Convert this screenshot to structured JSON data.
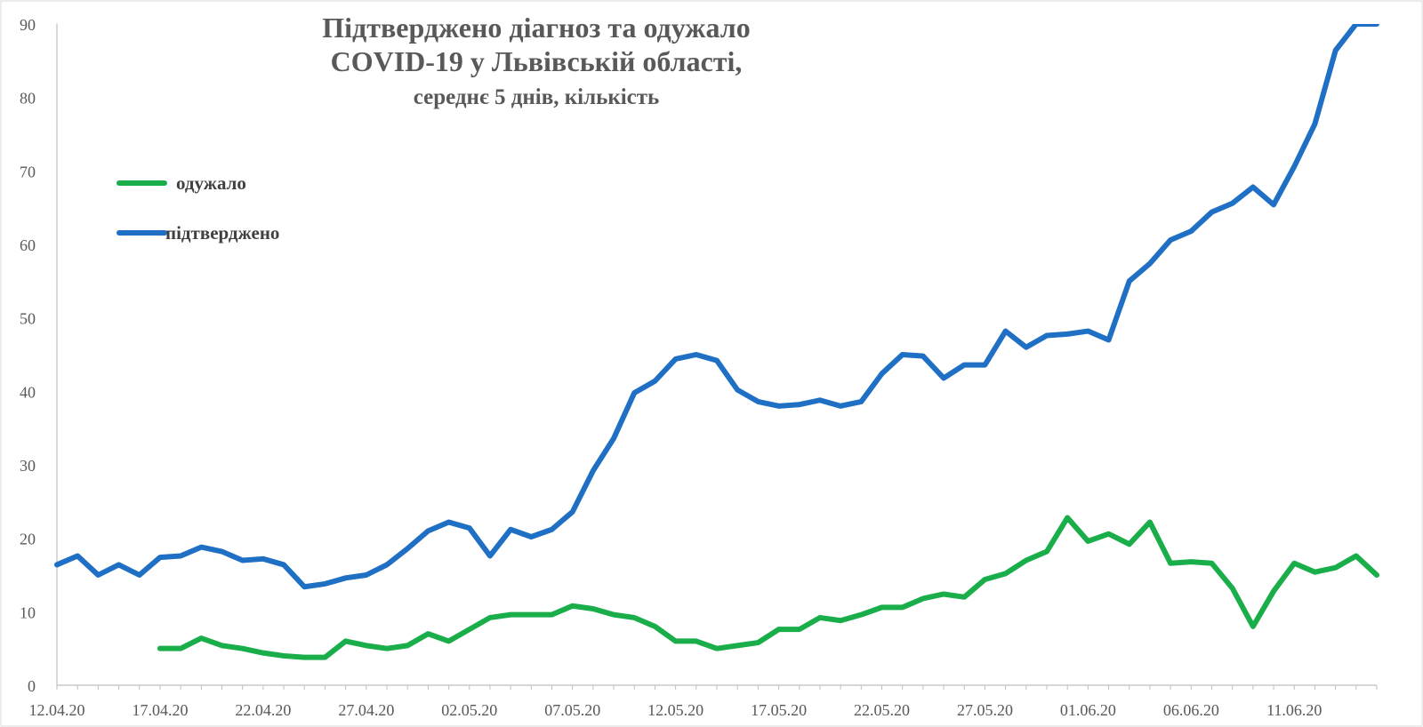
{
  "chart_data": {
    "type": "line",
    "title_lines": [
      "Підтверджено діагноз та одужало",
      "COVID-19 у Львівській області,",
      "середнє 5 днів, кількість"
    ],
    "x_tick_labels": [
      "12.04.20",
      "17.04.20",
      "22.04.20",
      "27.04.20",
      "02.05.20",
      "07.05.20",
      "12.05.20",
      "17.05.20",
      "22.05.20",
      "27.05.20",
      "01.06.20",
      "06.06.20",
      "11.06.20"
    ],
    "x_tick_every": 5,
    "num_points": 65,
    "ylim": [
      0,
      90
    ],
    "y_ticks": [
      0,
      10,
      20,
      30,
      40,
      50,
      60,
      70,
      80,
      90
    ],
    "grid": false,
    "legend_placement": "left",
    "series": [
      {
        "name": "одужало",
        "color": "#1aae4b",
        "start_index": 5,
        "values": [
          5.0,
          5.0,
          6.4,
          5.4,
          5.0,
          4.4,
          4.0,
          3.8,
          3.8,
          6.0,
          5.4,
          5.0,
          5.4,
          7.0,
          6.0,
          7.6,
          9.2,
          9.6,
          9.6,
          9.6,
          10.8,
          10.4,
          9.6,
          9.2,
          8.0,
          6.0,
          6.0,
          5.0,
          5.4,
          5.8,
          7.6,
          7.6,
          9.2,
          8.8,
          9.6,
          10.6,
          10.6,
          11.8,
          12.4,
          12.0,
          14.4,
          15.2,
          17.0,
          18.2,
          22.8,
          19.6,
          20.6,
          19.2,
          22.2,
          16.6,
          16.8,
          16.6,
          13.2,
          8.0,
          12.8,
          16.6,
          15.4,
          16.0,
          17.6,
          15.0
        ]
      },
      {
        "name": "підтверджено",
        "color": "#1f6fc5",
        "start_index": 0,
        "values": [
          16.4,
          17.6,
          15.0,
          16.4,
          15.0,
          17.4,
          17.6,
          18.8,
          18.2,
          17.0,
          17.2,
          16.4,
          13.4,
          13.8,
          14.6,
          15.0,
          16.4,
          18.6,
          21.0,
          22.2,
          21.4,
          17.6,
          21.2,
          20.2,
          21.2,
          23.6,
          29.2,
          33.6,
          39.8,
          41.4,
          44.4,
          45.0,
          44.2,
          40.2,
          38.6,
          38.0,
          38.2,
          38.8,
          38.0,
          38.6,
          42.4,
          45.0,
          44.8,
          41.8,
          43.6,
          43.6,
          48.2,
          46.0,
          47.6,
          47.8,
          48.2,
          47.0,
          55.0,
          57.4,
          60.6,
          61.8,
          64.4,
          65.6,
          67.8,
          65.4,
          70.6,
          76.4,
          86.4,
          90.0,
          90.0
        ]
      }
    ]
  }
}
